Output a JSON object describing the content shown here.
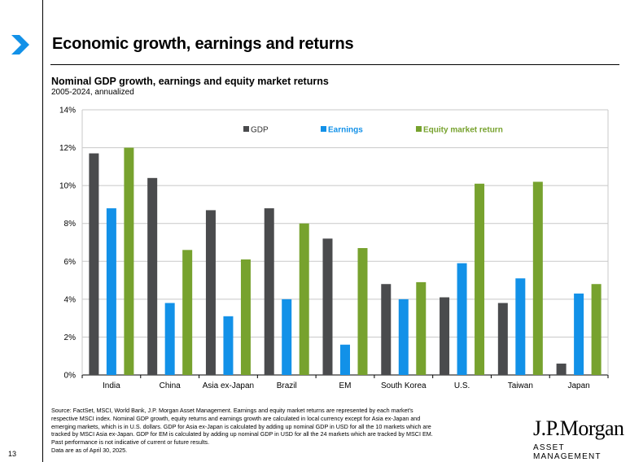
{
  "page": {
    "title": "Economic growth, earnings and returns",
    "chart_title": "Nominal GDP growth, earnings and equity market returns",
    "chart_subtitle": "2005-2024, annualized",
    "page_number": "13",
    "source_lines": [
      "Source: FactSet, MSCI, World Bank, J.P. Morgan Asset Management. Earnings and equity market returns are represented by each market's",
      "respective MSCI index. Nominal GDP growth, equity returns and earnings growth are calculated in local currency except for Asia ex-Japan and",
      "emerging markets, which is in U.S. dollars. GDP for Asia ex-Japan is calculated by adding up nominal GDP in USD for all the 10 markets which are",
      "tracked by MSCI Asia ex-Japan. GDP for EM is calculated by adding up nominal GDP in USD for all the 24 markets which are tracked by MSCI EM.",
      "Past performance is not indicative of current or future results.",
      "Data are as of April 30, 2025."
    ],
    "brand": "J.P.Morgan",
    "brand_sub": "ASSET MANAGEMENT",
    "colors": {
      "gdp": "#4a4b4d",
      "earnings": "#1291e8",
      "equity": "#77a22e",
      "grid": "#c8c8c8",
      "accent": "#1291e8"
    }
  },
  "chart_data": {
    "type": "bar",
    "categories": [
      "India",
      "China",
      "Asia ex-Japan",
      "Brazil",
      "EM",
      "South Korea",
      "U.S.",
      "Taiwan",
      "Japan"
    ],
    "series": [
      {
        "name": "GDP",
        "values": [
          11.7,
          10.4,
          8.7,
          8.8,
          7.2,
          4.8,
          4.1,
          3.8,
          0.6
        ]
      },
      {
        "name": "Earnings",
        "values": [
          8.8,
          3.8,
          3.1,
          4.0,
          1.6,
          4.0,
          5.9,
          5.1,
          4.3
        ]
      },
      {
        "name": "Equity market return",
        "values": [
          12.0,
          6.6,
          6.1,
          8.0,
          6.7,
          4.9,
          10.1,
          10.2,
          4.8
        ]
      }
    ],
    "ylim": [
      0,
      14
    ],
    "yticks": [
      "0%",
      "2%",
      "4%",
      "6%",
      "8%",
      "10%",
      "12%",
      "14%"
    ],
    "grid": true,
    "legend_position": "top-center"
  }
}
